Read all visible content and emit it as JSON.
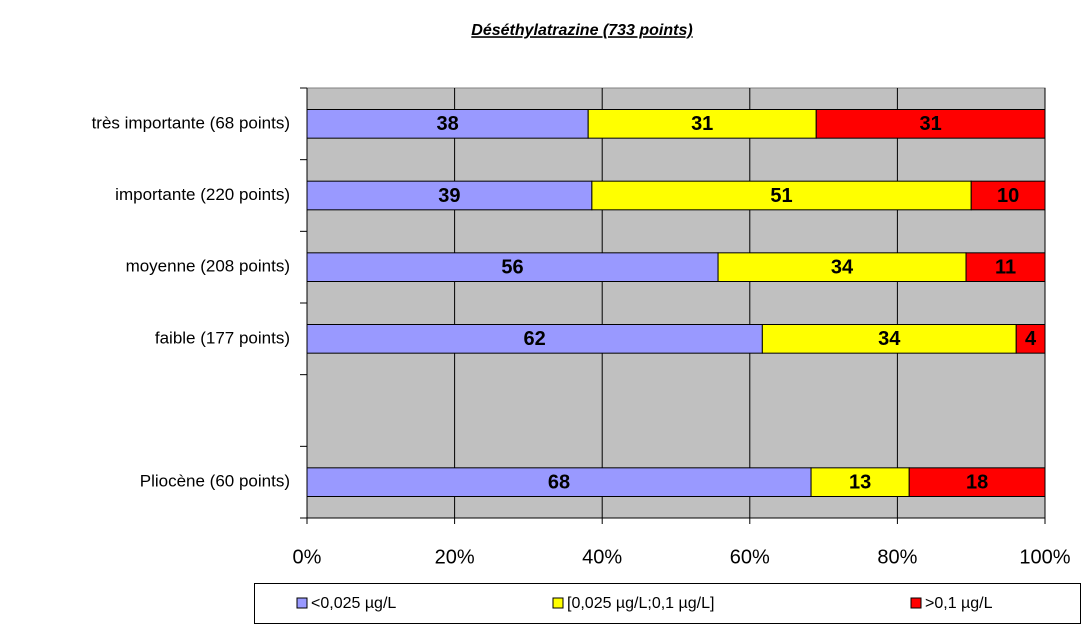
{
  "chart_data": {
    "type": "stacked_bar_horizontal",
    "title": "Déséthylatrazine (733 points)",
    "categories": [
      "très importante  (68 points)",
      "importante  (220 points)",
      "moyenne (208 points)",
      "faible (177 points)",
      null,
      "Pliocène (60 points)"
    ],
    "series": [
      {
        "name": "<0,025 µg/L",
        "color": "#9999ff",
        "values": [
          38.1,
          38.6,
          55.7,
          61.7,
          null,
          68.3
        ],
        "value_labels": [
          "38",
          "39",
          "56",
          "62",
          null,
          "68"
        ]
      },
      {
        "name": "[0,025 µg/L;0,1 µg/L]",
        "color": "#ffff00",
        "values": [
          30.9,
          51.4,
          33.6,
          34.4,
          null,
          13.3
        ],
        "value_labels": [
          "31",
          "51",
          "34",
          "34",
          null,
          "13"
        ]
      },
      {
        "name": ">0,1 µg/L",
        "color": "#ff0000",
        "values": [
          31.0,
          10.0,
          10.7,
          3.9,
          null,
          18.4
        ],
        "value_labels": [
          "31",
          "10",
          "11",
          "4",
          null,
          "18"
        ]
      }
    ],
    "xlim": [
      0,
      100
    ],
    "xticks": [
      {
        "value": 0,
        "label": "0%"
      },
      {
        "value": 20,
        "label": "20%"
      },
      {
        "value": 40,
        "label": "40%"
      },
      {
        "value": 60,
        "label": "60%"
      },
      {
        "value": 80,
        "label": "80%"
      },
      {
        "value": 100,
        "label": "100%"
      }
    ],
    "grid": true,
    "legend": "bottom",
    "plot_background": "#c0c0c0"
  }
}
